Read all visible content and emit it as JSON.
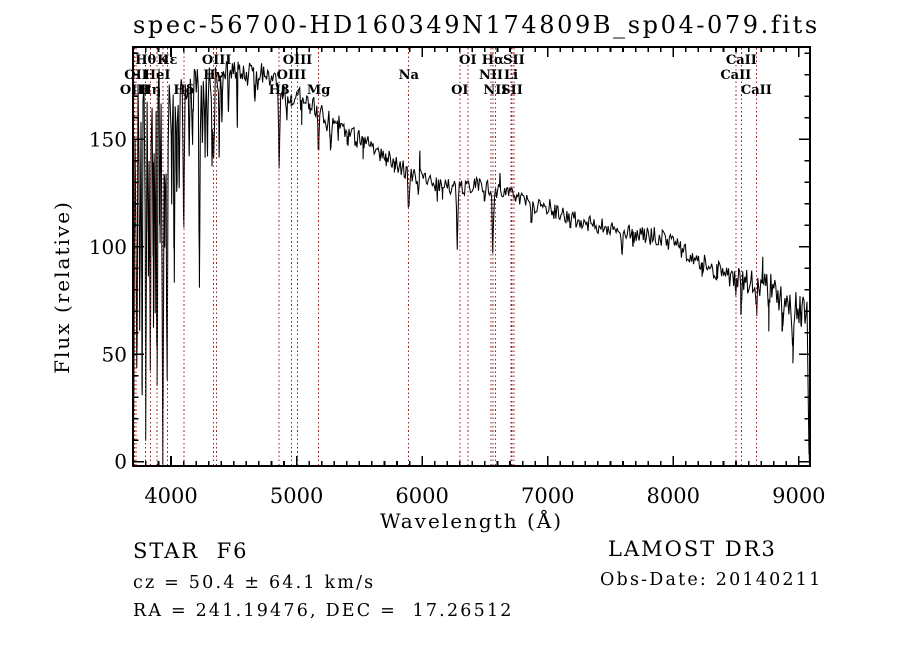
{
  "title": "spec-56700-HD160349N174809B_sp04-079.fits",
  "annotations": {
    "class_line": "STAR  F6",
    "cz_line": "cz = 50.4 ± 64.1 km/s",
    "radec_line": "RA = 241.19476, DEC =  17.26512",
    "survey": "LAMOST DR3",
    "obsdate": "Obs-Date: 20140211"
  },
  "chart_data": {
    "type": "line",
    "title": "spec-56700-HD160349N174809B_sp04-079.fits",
    "xlabel": "Wavelength (Å)",
    "ylabel": "Flux (relative)",
    "xlim": [
      3697,
      9089
    ],
    "ylim": [
      -2,
      193
    ],
    "x_ticks": [
      4000,
      5000,
      6000,
      7000,
      8000,
      9000
    ],
    "y_ticks": [
      0,
      50,
      100,
      150
    ],
    "x_minor_step": 100,
    "y_minor_step": 10,
    "grid": false,
    "legend": "none",
    "line_color": "#000000",
    "marker_color": "#992222",
    "line_markers": [
      {
        "label": "Hθ",
        "wavelength": 3798,
        "row": 1
      },
      {
        "label": "K",
        "wavelength": 3934,
        "row": 1
      },
      {
        "label": "Hε",
        "wavelength": 3970,
        "row": 1
      },
      {
        "label": "OIII",
        "wavelength": 4363,
        "row": 1
      },
      {
        "label": "OIII",
        "wavelength": 5007,
        "row": 1
      },
      {
        "label": "OI",
        "wavelength": 6364,
        "row": 1
      },
      {
        "label": "Hα",
        "wavelength": 6563,
        "row": 1
      },
      {
        "label": "SII",
        "wavelength": 6731,
        "row": 1
      },
      {
        "label": "CaII",
        "wavelength": 8542,
        "row": 1
      },
      {
        "label": "OII",
        "wavelength": 3721,
        "row": 2
      },
      {
        "label": "HeI",
        "wavelength": 3889,
        "row": 2
      },
      {
        "label": "Hγ",
        "wavelength": 4340,
        "row": 2
      },
      {
        "label": "OIII",
        "wavelength": 4959,
        "row": 2
      },
      {
        "label": "Na",
        "wavelength": 5893,
        "row": 2
      },
      {
        "label": "NII",
        "wavelength": 6548,
        "row": 2
      },
      {
        "label": "Li",
        "wavelength": 6708,
        "row": 2
      },
      {
        "label": "CaII",
        "wavelength": 8498,
        "row": 2
      },
      {
        "label": "OIII",
        "wavelength": 3710,
        "row": 3
      },
      {
        "label": "Hη",
        "wavelength": 3835,
        "row": 3
      },
      {
        "label": "Hδ",
        "wavelength": 4102,
        "row": 3
      },
      {
        "label": "Hβ",
        "wavelength": 4861,
        "row": 3
      },
      {
        "label": "Mg",
        "wavelength": 5175,
        "row": 3
      },
      {
        "label": "OI",
        "wavelength": 6300,
        "row": 3
      },
      {
        "label": "NII",
        "wavelength": 6583,
        "row": 3
      },
      {
        "label": "SII",
        "wavelength": 6716,
        "row": 3
      },
      {
        "label": "CaII",
        "wavelength": 8662,
        "row": 3
      }
    ],
    "continuum_points": [
      [
        3697,
        155
      ],
      [
        3750,
        168
      ],
      [
        3800,
        170
      ],
      [
        3900,
        172
      ],
      [
        4000,
        170
      ],
      [
        4100,
        172
      ],
      [
        4200,
        176
      ],
      [
        4300,
        177
      ],
      [
        4400,
        180
      ],
      [
        4500,
        181
      ],
      [
        4600,
        182
      ],
      [
        4700,
        181
      ],
      [
        4800,
        178
      ],
      [
        4900,
        172
      ],
      [
        5000,
        170
      ],
      [
        5100,
        167
      ],
      [
        5200,
        163
      ],
      [
        5300,
        158
      ],
      [
        5400,
        154
      ],
      [
        5500,
        150
      ],
      [
        5600,
        146
      ],
      [
        5700,
        142
      ],
      [
        5800,
        138
      ],
      [
        5900,
        134
      ],
      [
        6000,
        131
      ],
      [
        6100,
        129
      ],
      [
        6200,
        128
      ],
      [
        6300,
        127
      ],
      [
        6400,
        128
      ],
      [
        6450,
        129
      ],
      [
        6500,
        128
      ],
      [
        6600,
        126
      ],
      [
        6700,
        125
      ],
      [
        6800,
        122
      ],
      [
        6900,
        119
      ],
      [
        7000,
        117
      ],
      [
        7100,
        115
      ],
      [
        7200,
        113
      ],
      [
        7300,
        111
      ],
      [
        7400,
        110
      ],
      [
        7500,
        108
      ],
      [
        7600,
        107
      ],
      [
        7700,
        106
      ],
      [
        7800,
        105
      ],
      [
        7900,
        104
      ],
      [
        8000,
        101
      ],
      [
        8100,
        97
      ],
      [
        8200,
        94
      ],
      [
        8300,
        91
      ],
      [
        8400,
        88
      ],
      [
        8500,
        86
      ],
      [
        8600,
        83
      ],
      [
        8700,
        82
      ],
      [
        8800,
        79
      ],
      [
        8900,
        76
      ],
      [
        9000,
        72
      ],
      [
        9050,
        70
      ],
      [
        9089,
        65
      ]
    ],
    "absorption_lines": [
      [
        3700,
        10,
        5
      ],
      [
        3727,
        40,
        4
      ],
      [
        3750,
        55,
        3
      ],
      [
        3770,
        45,
        3
      ],
      [
        3798,
        28,
        4
      ],
      [
        3820,
        75,
        3
      ],
      [
        3835,
        42,
        4
      ],
      [
        3860,
        60,
        3
      ],
      [
        3874,
        80,
        3
      ],
      [
        3889,
        38,
        4
      ],
      [
        3912,
        95,
        3
      ],
      [
        3934,
        3,
        5
      ],
      [
        3950,
        110,
        3
      ],
      [
        3968,
        42,
        5
      ],
      [
        4005,
        120,
        3
      ],
      [
        4026,
        90,
        3
      ],
      [
        4045,
        118,
        3
      ],
      [
        4064,
        125,
        3
      ],
      [
        4102,
        108,
        4
      ],
      [
        4144,
        138,
        3
      ],
      [
        4172,
        145,
        3
      ],
      [
        4226,
        88,
        4
      ],
      [
        4250,
        150,
        3
      ],
      [
        4271,
        142,
        3
      ],
      [
        4290,
        148,
        3
      ],
      [
        4326,
        140,
        3
      ],
      [
        4340,
        136,
        4
      ],
      [
        4383,
        142,
        3
      ],
      [
        4405,
        155,
        3
      ],
      [
        4458,
        162,
        3
      ],
      [
        4528,
        160,
        3
      ],
      [
        4668,
        165,
        3
      ],
      [
        4861,
        136,
        4
      ],
      [
        4920,
        158,
        3
      ],
      [
        4957,
        162,
        3
      ],
      [
        5040,
        160,
        3
      ],
      [
        5110,
        162,
        3
      ],
      [
        5175,
        145,
        5
      ],
      [
        5270,
        148,
        4
      ],
      [
        5328,
        152,
        3
      ],
      [
        5406,
        148,
        3
      ],
      [
        5530,
        145,
        3
      ],
      [
        5710,
        138,
        3
      ],
      [
        5782,
        135,
        3
      ],
      [
        5893,
        116,
        5
      ],
      [
        6122,
        122,
        3
      ],
      [
        6162,
        123,
        3
      ],
      [
        6280,
        101,
        4
      ],
      [
        6495,
        122,
        3
      ],
      [
        6563,
        99,
        5
      ],
      [
        6870,
        112,
        4
      ],
      [
        7180,
        107,
        3
      ],
      [
        7594,
        97,
        5
      ],
      [
        7680,
        104,
        3
      ],
      [
        8230,
        88,
        3
      ],
      [
        8350,
        86,
        3
      ],
      [
        8498,
        76,
        3
      ],
      [
        8542,
        70,
        4
      ],
      [
        8662,
        71,
        4
      ],
      [
        8760,
        66,
        4
      ],
      [
        8870,
        60,
        4
      ],
      [
        8950,
        47,
        5
      ],
      [
        9020,
        58,
        4
      ],
      [
        9085,
        2,
        7
      ]
    ],
    "emission_spikes": [
      [
        4532,
        9,
        2
      ],
      [
        5982,
        13,
        2
      ],
      [
        6619,
        7,
        2
      ],
      [
        8712,
        13,
        2
      ]
    ],
    "noise_profile": [
      [
        3697,
        20
      ],
      [
        3900,
        18
      ],
      [
        4050,
        9
      ],
      [
        4300,
        6.5
      ],
      [
        4700,
        5.5
      ],
      [
        5100,
        5
      ],
      [
        5600,
        4.5
      ],
      [
        6000,
        4
      ],
      [
        6600,
        3.5
      ],
      [
        7200,
        3.8
      ],
      [
        7800,
        4.2
      ],
      [
        8300,
        5
      ],
      [
        8700,
        6.5
      ],
      [
        9000,
        8.5
      ],
      [
        9089,
        9
      ]
    ],
    "noise_seed": 20140211
  }
}
